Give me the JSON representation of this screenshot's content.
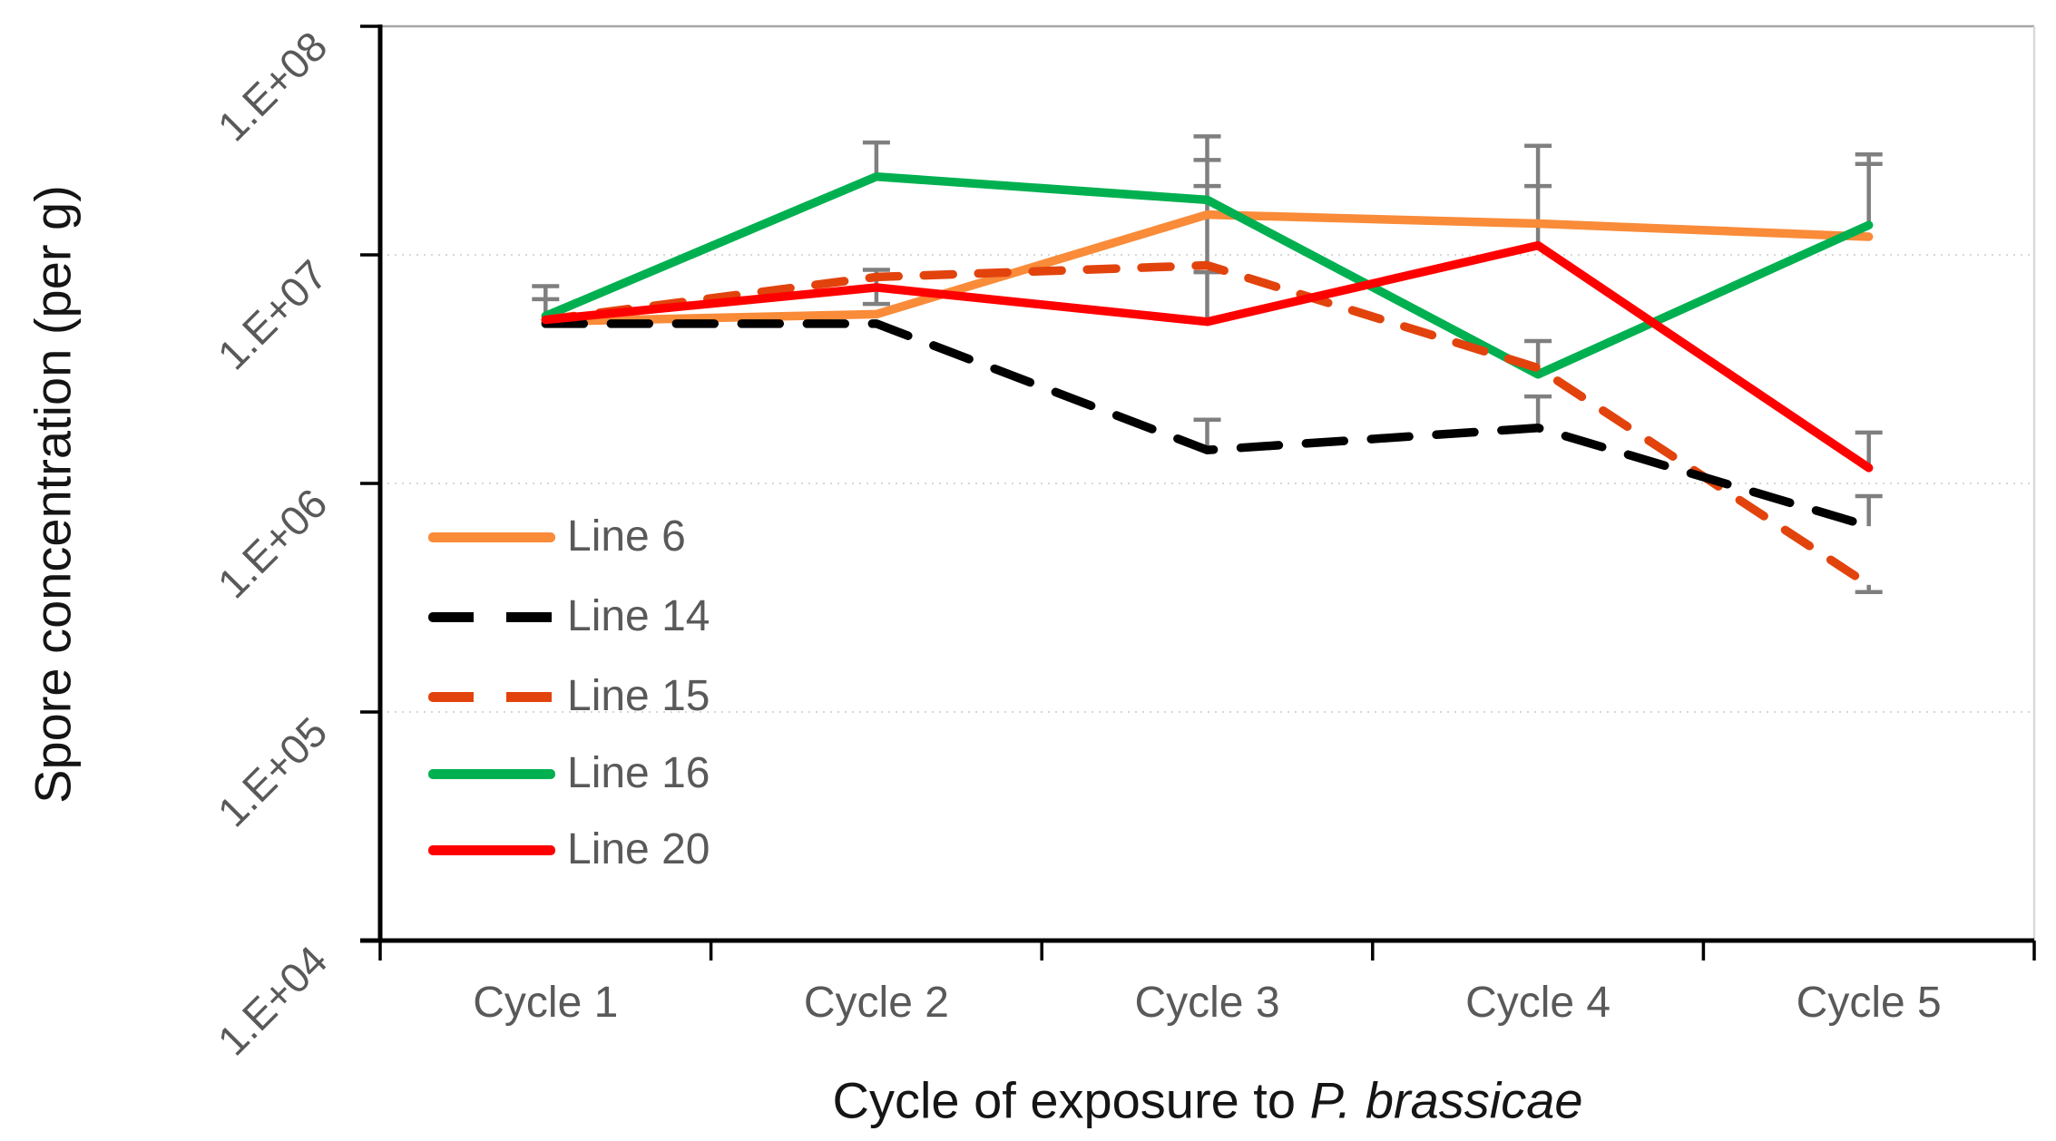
{
  "chart_data": {
    "type": "line",
    "title": "",
    "xlabel": {
      "prefix": "Cycle of exposure to ",
      "italic": "P. brassicae"
    },
    "ylabel": "Spore concentration (per g)",
    "categories": [
      "Cycle 1",
      "Cycle 2",
      "Cycle 3",
      "Cycle 4",
      "Cycle 5"
    ],
    "y_axis": {
      "scale": "log",
      "range": [
        10000.0,
        100000000.0
      ],
      "ticks": [
        {
          "label": "1.E+08",
          "value": 100000000.0
        },
        {
          "label": "1.E+07",
          "value": 10000000.0
        },
        {
          "label": "1.E+06",
          "value": 1000000.0
        },
        {
          "label": "1.E+05",
          "value": 100000.0
        },
        {
          "label": "1.E+04",
          "value": 10000.0
        }
      ],
      "gridlines": [
        10000000.0,
        1000000.0,
        100000.0
      ],
      "grid_on": true
    },
    "legend_position": "inside-left",
    "series": [
      {
        "name": "Line 6",
        "color": "#F98B39",
        "dash": "solid",
        "values": [
          5100000.0,
          5500000.0,
          15000000.0,
          13700000.0,
          12000000.0
        ]
      },
      {
        "name": "Line 14",
        "color": "#000000",
        "dash": "dashed",
        "values": [
          5000000.0,
          5000000.0,
          1400000.0,
          1750000.0,
          650000.0
        ]
      },
      {
        "name": "Line 15",
        "color": "#E2430D",
        "dash": "dashed",
        "values": [
          5200000.0,
          8000000.0,
          9000000.0,
          3200000.0,
          360000.0
        ]
      },
      {
        "name": "Line 16",
        "color": "#00B050",
        "dash": "solid",
        "values": [
          5400000.0,
          22000000.0,
          17400000.0,
          3000000.0,
          13500000.0
        ]
      },
      {
        "name": "Line 20",
        "color": "#FF0000",
        "dash": "solid",
        "values": [
          5200000.0,
          7200000.0,
          5100000.0,
          11000000.0,
          1170000.0
        ]
      }
    ],
    "error_bars": [
      {
        "cycle": 0,
        "from": 5000000.0,
        "to": 7300000.0,
        "caps": [
          7300000.0,
          6400000.0
        ]
      },
      {
        "cycle": 1,
        "from": 22000000.0,
        "to": 31000000.0,
        "caps": [
          31000000.0
        ]
      },
      {
        "cycle": 1,
        "from": 6100000.0,
        "to": 8600000.0,
        "caps": [
          8600000.0,
          6100000.0
        ]
      },
      {
        "cycle": 2,
        "from": 9000000.0,
        "to": 33000000.0,
        "caps": [
          33000000.0,
          26000000.0,
          20000000.0
        ]
      },
      {
        "cycle": 2,
        "from": 5100000.0,
        "to": 8400000.0,
        "caps": [
          8400000.0
        ]
      },
      {
        "cycle": 2,
        "from": 1400000.0,
        "to": 1900000.0,
        "caps": [
          1900000.0
        ]
      },
      {
        "cycle": 3,
        "from": 10800000.0,
        "to": 30000000.0,
        "caps": [
          30000000.0,
          20000000.0
        ]
      },
      {
        "cycle": 3,
        "from": 3000000.0,
        "to": 4200000.0,
        "caps": [
          4200000.0
        ]
      },
      {
        "cycle": 3,
        "from": 1750000.0,
        "to": 2400000.0,
        "caps": [
          2400000.0
        ]
      },
      {
        "cycle": 4,
        "from": 13500000.0,
        "to": 27500000.0,
        "caps": [
          27500000.0,
          25000000.0
        ]
      },
      {
        "cycle": 4,
        "from": 1170000.0,
        "to": 1670000.0,
        "caps": [
          1670000.0
        ]
      },
      {
        "cycle": 4,
        "from": 650000.0,
        "to": 880000.0,
        "caps": [
          880000.0
        ]
      },
      {
        "cycle": 4,
        "from": 335000.0,
        "to": 360000.0,
        "caps": [
          335000.0
        ]
      }
    ],
    "colors": {
      "axis": "#000000",
      "tick_label": "#595959",
      "title_text": "#151515",
      "error_bar": "#7F7F7F",
      "gridline": "#D7D7D7",
      "plot_border_top": "#A6A6A6",
      "plot_border_right": "#D9D9D9"
    }
  }
}
